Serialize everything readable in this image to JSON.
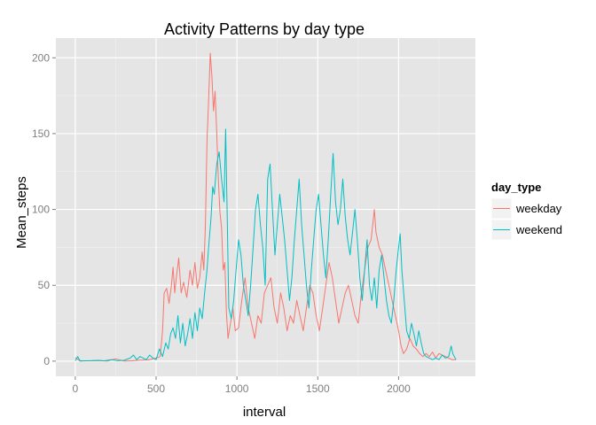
{
  "chart_data": {
    "type": "line",
    "title": "Activity Patterns by day type",
    "xlabel": "interval",
    "ylabel": "Mean_steps",
    "xlim": [
      -120,
      2475
    ],
    "ylim": [
      -10,
      213
    ],
    "xticks": [
      0,
      500,
      1000,
      1500,
      2000
    ],
    "yticks": [
      0,
      50,
      100,
      150,
      200
    ],
    "grid": true,
    "legend": {
      "title": "day_type",
      "position": "right"
    },
    "series": [
      {
        "name": "weekday",
        "color": "#F8766D",
        "points": [
          [
            0,
            2.3
          ],
          [
            25,
            0.4
          ],
          [
            50,
            0.2
          ],
          [
            100,
            0.3
          ],
          [
            150,
            0.4
          ],
          [
            200,
            0.1
          ],
          [
            250,
            1.5
          ],
          [
            300,
            0.1
          ],
          [
            350,
            0.2
          ],
          [
            400,
            0.6
          ],
          [
            450,
            0.8
          ],
          [
            500,
            2.0
          ],
          [
            525,
            3.0
          ],
          [
            540,
            20
          ],
          [
            550,
            45
          ],
          [
            565,
            48
          ],
          [
            580,
            38
          ],
          [
            595,
            50
          ],
          [
            605,
            62
          ],
          [
            615,
            45
          ],
          [
            625,
            55
          ],
          [
            640,
            68
          ],
          [
            655,
            45
          ],
          [
            670,
            52
          ],
          [
            690,
            42
          ],
          [
            710,
            60
          ],
          [
            725,
            50
          ],
          [
            740,
            65
          ],
          [
            755,
            48
          ],
          [
            770,
            55
          ],
          [
            785,
            72
          ],
          [
            795,
            60
          ],
          [
            805,
            90
          ],
          [
            815,
            145
          ],
          [
            825,
            172
          ],
          [
            835,
            203
          ],
          [
            845,
            188
          ],
          [
            855,
            165
          ],
          [
            865,
            178
          ],
          [
            875,
            150
          ],
          [
            885,
            120
          ],
          [
            895,
            98
          ],
          [
            905,
            88
          ],
          [
            915,
            60
          ],
          [
            925,
            65
          ],
          [
            935,
            32
          ],
          [
            945,
            15
          ],
          [
            960,
            25
          ],
          [
            975,
            35
          ],
          [
            990,
            20
          ],
          [
            1010,
            22
          ],
          [
            1030,
            40
          ],
          [
            1050,
            55
          ],
          [
            1070,
            35
          ],
          [
            1090,
            25
          ],
          [
            1110,
            15
          ],
          [
            1130,
            30
          ],
          [
            1150,
            25
          ],
          [
            1170,
            45
          ],
          [
            1190,
            50
          ],
          [
            1210,
            55
          ],
          [
            1230,
            35
          ],
          [
            1250,
            25
          ],
          [
            1270,
            45
          ],
          [
            1290,
            35
          ],
          [
            1310,
            20
          ],
          [
            1330,
            30
          ],
          [
            1350,
            25
          ],
          [
            1370,
            40
          ],
          [
            1390,
            30
          ],
          [
            1410,
            20
          ],
          [
            1430,
            35
          ],
          [
            1450,
            50
          ],
          [
            1470,
            45
          ],
          [
            1490,
            30
          ],
          [
            1510,
            20
          ],
          [
            1530,
            35
          ],
          [
            1550,
            50
          ],
          [
            1570,
            65
          ],
          [
            1590,
            55
          ],
          [
            1610,
            40
          ],
          [
            1630,
            25
          ],
          [
            1650,
            35
          ],
          [
            1670,
            45
          ],
          [
            1690,
            50
          ],
          [
            1710,
            40
          ],
          [
            1730,
            30
          ],
          [
            1750,
            25
          ],
          [
            1770,
            45
          ],
          [
            1790,
            60
          ],
          [
            1810,
            75
          ],
          [
            1830,
            80
          ],
          [
            1850,
            100
          ],
          [
            1860,
            85
          ],
          [
            1880,
            75
          ],
          [
            1900,
            70
          ],
          [
            1920,
            60
          ],
          [
            1940,
            50
          ],
          [
            1960,
            40
          ],
          [
            1980,
            30
          ],
          [
            2000,
            20
          ],
          [
            2015,
            10
          ],
          [
            2030,
            5
          ],
          [
            2050,
            8
          ],
          [
            2070,
            15
          ],
          [
            2090,
            10
          ],
          [
            2110,
            8
          ],
          [
            2130,
            5
          ],
          [
            2150,
            3
          ],
          [
            2170,
            5
          ],
          [
            2190,
            3
          ],
          [
            2210,
            6
          ],
          [
            2230,
            2
          ],
          [
            2250,
            5
          ],
          [
            2270,
            4
          ],
          [
            2290,
            3
          ],
          [
            2310,
            2
          ],
          [
            2330,
            1
          ],
          [
            2355,
            1
          ]
        ]
      },
      {
        "name": "weekend",
        "color": "#00BFC4",
        "points": [
          [
            0,
            0.2
          ],
          [
            15,
            3
          ],
          [
            30,
            0.1
          ],
          [
            60,
            0.2
          ],
          [
            100,
            0.3
          ],
          [
            140,
            0.5
          ],
          [
            180,
            0.2
          ],
          [
            220,
            1.0
          ],
          [
            260,
            0.3
          ],
          [
            300,
            0.5
          ],
          [
            340,
            2.0
          ],
          [
            360,
            4.0
          ],
          [
            380,
            1.0
          ],
          [
            400,
            3.0
          ],
          [
            420,
            2.0
          ],
          [
            440,
            1.0
          ],
          [
            460,
            4.0
          ],
          [
            480,
            2.0
          ],
          [
            500,
            1.0
          ],
          [
            520,
            8
          ],
          [
            540,
            3
          ],
          [
            560,
            12
          ],
          [
            575,
            8
          ],
          [
            590,
            18
          ],
          [
            605,
            22
          ],
          [
            620,
            15
          ],
          [
            635,
            30
          ],
          [
            650,
            12
          ],
          [
            665,
            25
          ],
          [
            680,
            10
          ],
          [
            695,
            18
          ],
          [
            710,
            28
          ],
          [
            725,
            15
          ],
          [
            740,
            32
          ],
          [
            755,
            20
          ],
          [
            770,
            35
          ],
          [
            785,
            28
          ],
          [
            800,
            45
          ],
          [
            815,
            60
          ],
          [
            825,
            75
          ],
          [
            840,
            95
          ],
          [
            850,
            115
          ],
          [
            860,
            110
          ],
          [
            875,
            130
          ],
          [
            890,
            138
          ],
          [
            905,
            120
          ],
          [
            920,
            105
          ],
          [
            930,
            153
          ],
          [
            940,
            95
          ],
          [
            950,
            35
          ],
          [
            965,
            28
          ],
          [
            980,
            40
          ],
          [
            995,
            60
          ],
          [
            1010,
            80
          ],
          [
            1025,
            70
          ],
          [
            1040,
            50
          ],
          [
            1055,
            40
          ],
          [
            1070,
            30
          ],
          [
            1085,
            50
          ],
          [
            1100,
            75
          ],
          [
            1115,
            100
          ],
          [
            1130,
            110
          ],
          [
            1145,
            90
          ],
          [
            1160,
            75
          ],
          [
            1175,
            50
          ],
          [
            1190,
            120
          ],
          [
            1205,
            130
          ],
          [
            1220,
            100
          ],
          [
            1235,
            70
          ],
          [
            1250,
            90
          ],
          [
            1265,
            110
          ],
          [
            1280,
            95
          ],
          [
            1295,
            80
          ],
          [
            1310,
            60
          ],
          [
            1325,
            40
          ],
          [
            1340,
            55
          ],
          [
            1355,
            80
          ],
          [
            1370,
            100
          ],
          [
            1385,
            120
          ],
          [
            1400,
            90
          ],
          [
            1415,
            70
          ],
          [
            1430,
            50
          ],
          [
            1445,
            35
          ],
          [
            1460,
            60
          ],
          [
            1475,
            80
          ],
          [
            1490,
            100
          ],
          [
            1505,
            110
          ],
          [
            1520,
            90
          ],
          [
            1535,
            70
          ],
          [
            1550,
            55
          ],
          [
            1565,
            80
          ],
          [
            1580,
            110
          ],
          [
            1595,
            137
          ],
          [
            1610,
            105
          ],
          [
            1625,
            90
          ],
          [
            1640,
            100
          ],
          [
            1655,
            120
          ],
          [
            1670,
            95
          ],
          [
            1685,
            80
          ],
          [
            1700,
            70
          ],
          [
            1715,
            85
          ],
          [
            1730,
            100
          ],
          [
            1745,
            80
          ],
          [
            1760,
            55
          ],
          [
            1775,
            40
          ],
          [
            1790,
            60
          ],
          [
            1805,
            80
          ],
          [
            1820,
            50
          ],
          [
            1835,
            40
          ],
          [
            1850,
            55
          ],
          [
            1865,
            35
          ],
          [
            1880,
            60
          ],
          [
            1895,
            70
          ],
          [
            1910,
            55
          ],
          [
            1925,
            40
          ],
          [
            1940,
            30
          ],
          [
            1955,
            25
          ],
          [
            1970,
            40
          ],
          [
            1985,
            60
          ],
          [
            2000,
            75
          ],
          [
            2010,
            84
          ],
          [
            2020,
            60
          ],
          [
            2035,
            40
          ],
          [
            2050,
            20
          ],
          [
            2065,
            15
          ],
          [
            2080,
            25
          ],
          [
            2095,
            18
          ],
          [
            2110,
            10
          ],
          [
            2125,
            20
          ],
          [
            2140,
            12
          ],
          [
            2155,
            5
          ],
          [
            2170,
            3
          ],
          [
            2190,
            2
          ],
          [
            2210,
            1
          ],
          [
            2230,
            2
          ],
          [
            2250,
            1
          ],
          [
            2270,
            4
          ],
          [
            2290,
            2
          ],
          [
            2310,
            3
          ],
          [
            2325,
            10
          ],
          [
            2335,
            5
          ],
          [
            2355,
            1
          ]
        ]
      }
    ]
  }
}
